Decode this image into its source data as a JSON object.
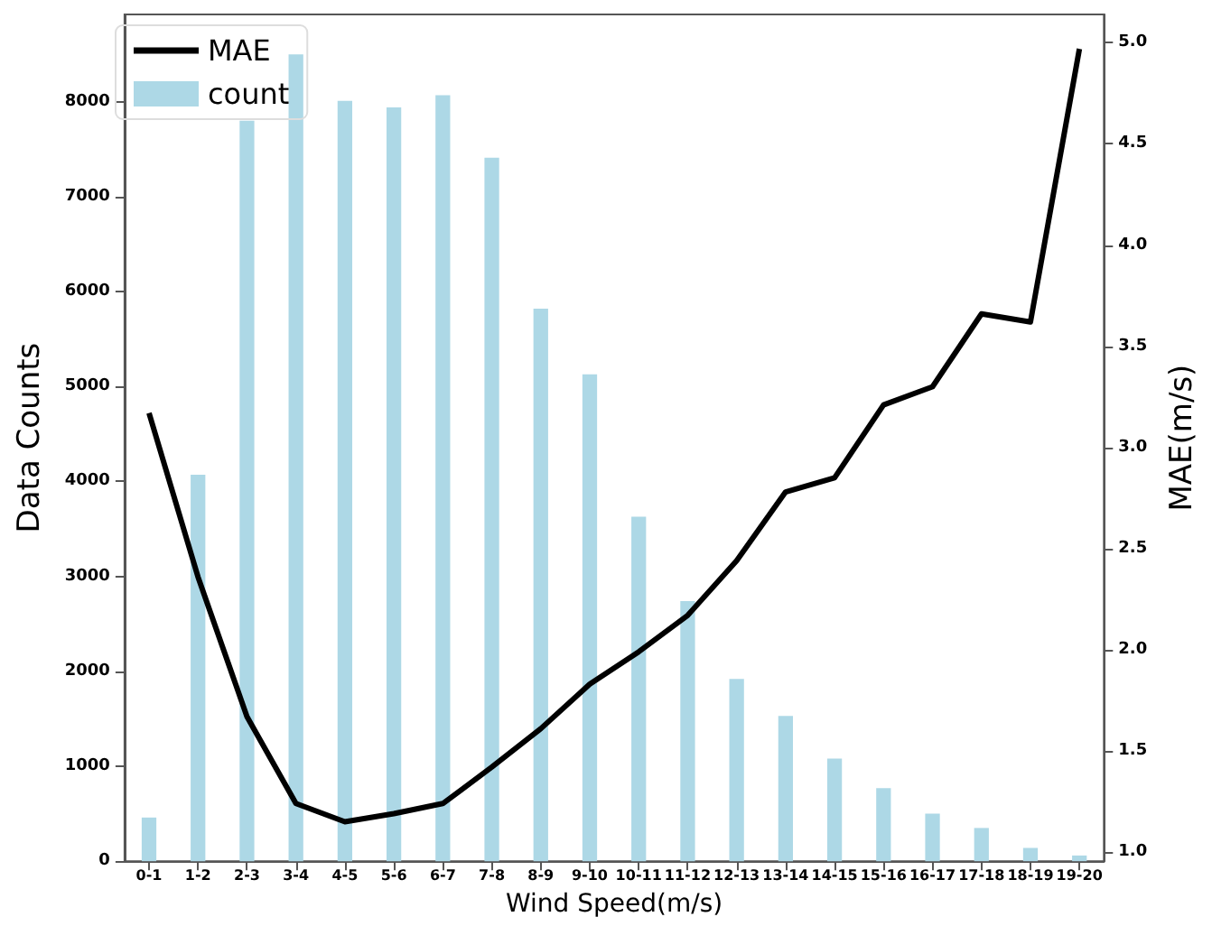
{
  "chart_data": {
    "type": "bar",
    "xlabel": "Wind Speed(m/s)",
    "ylabel": "Data Counts",
    "y2label": "MAE(m/s)",
    "categories": [
      "0-1",
      "1-2",
      "2-3",
      "3-4",
      "4-5",
      "5-6",
      "6-7",
      "7-8",
      "8-9",
      "9-10",
      "10-11",
      "11-12",
      "12-13",
      "13-14",
      "14-15",
      "15-16",
      "16-17",
      "17-18",
      "18-19",
      "19-20"
    ],
    "series": [
      {
        "name": "MAE",
        "type": "line",
        "axis": "y2",
        "color": "#000000",
        "marker": "none",
        "line_style": "solid",
        "values": [
          3.17,
          2.36,
          1.67,
          1.24,
          1.15,
          1.19,
          1.24,
          1.42,
          1.61,
          1.83,
          1.99,
          2.17,
          2.44,
          2.78,
          2.85,
          3.21,
          3.3,
          3.66,
          3.62,
          4.97
        ]
      },
      {
        "name": "count",
        "color": "#add8e6",
        "values": [
          460,
          4070,
          7800,
          8500,
          8010,
          7940,
          8070,
          7410,
          5820,
          5130,
          3630,
          2740,
          1920,
          1530,
          1080,
          770,
          500,
          350,
          140,
          60
        ]
      }
    ],
    "ylim": [
      0,
      8920
    ],
    "yticks": [
      0,
      1000,
      2000,
      3000,
      4000,
      5000,
      6000,
      7000,
      8000
    ],
    "y2lim": [
      0.955,
      5.14
    ],
    "y2ticks": [
      {
        "value": 1,
        "label": "1.0"
      },
      {
        "value": 1.5,
        "label": "1.5"
      },
      {
        "value": 2,
        "label": "2.0"
      },
      {
        "value": 2.5,
        "label": "2.5"
      },
      {
        "value": 3,
        "label": "3.0"
      },
      {
        "value": 3.5,
        "label": "3.5"
      },
      {
        "value": 4,
        "label": "4.0"
      },
      {
        "value": 4.5,
        "label": "4.5"
      },
      {
        "value": 5,
        "label": "5.0"
      }
    ],
    "grid": false,
    "legend": "top left"
  }
}
